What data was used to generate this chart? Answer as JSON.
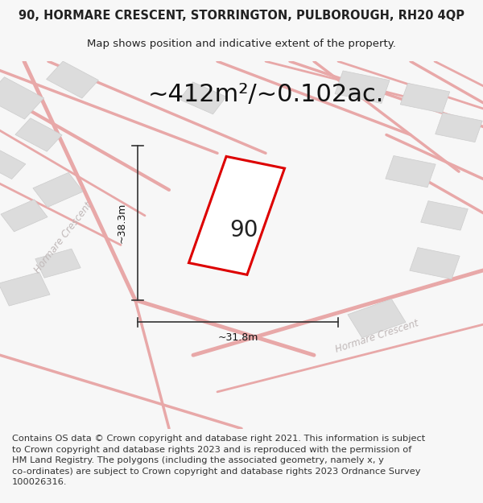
{
  "title": "90, HORMARE CRESCENT, STORRINGTON, PULBOROUGH, RH20 4QP",
  "subtitle": "Map shows position and indicative extent of the property.",
  "area_text": "~412m²/~0.102ac.",
  "label_90": "90",
  "dim_width": "~31.8m",
  "dim_height": "~38.3m",
  "street_label1": "Hormare Crescent",
  "street_label2": "Hormare Crescent",
  "footer_text": "Contains OS data © Crown copyright and database right 2021. This information is subject to Crown copyright and database rights 2023 and is reproduced with the permission of HM Land Registry. The polygons (including the associated geometry, namely x, y co-ordinates) are subject to Crown copyright and database rights 2023 Ordnance Survey 100026316.",
  "bg_color": "#f7f7f7",
  "map_bg": "#eeecec",
  "road_color": "#e8a8a8",
  "plot_outline_color": "#dd0000",
  "plot_fill_color": "#ffffff",
  "dim_line_color": "#333333",
  "building_fill": "#dcdcdc",
  "building_stroke": "#cccccc",
  "street_text_color": "#c0b8b8",
  "title_fontsize": 10.5,
  "subtitle_fontsize": 9.5,
  "area_fontsize": 22,
  "label_fontsize": 20,
  "dim_fontsize": 9,
  "footer_fontsize": 8.2,
  "figwidth": 6.0,
  "figheight": 6.25
}
